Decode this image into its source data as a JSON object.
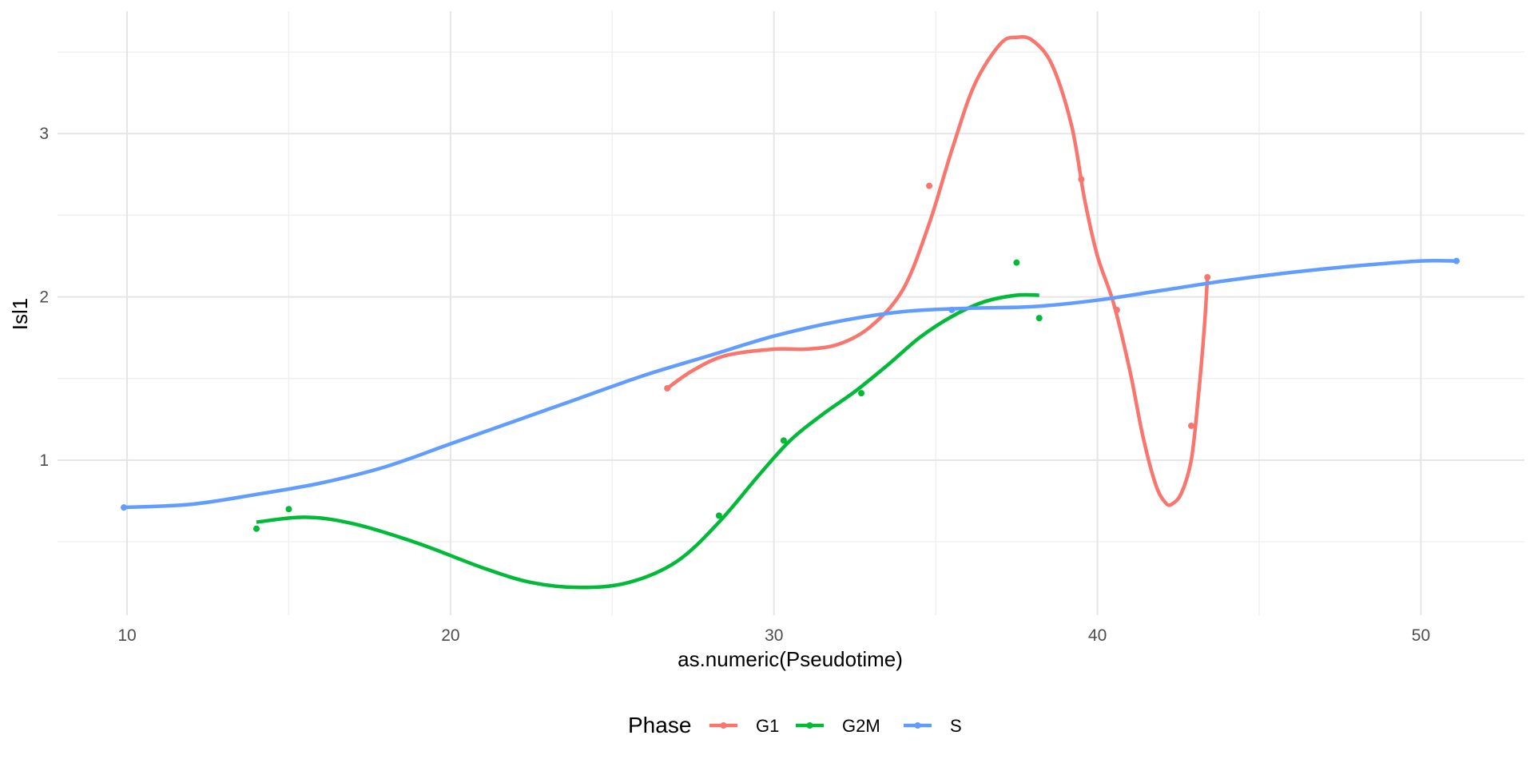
{
  "chart_data": {
    "type": "line",
    "title": "",
    "xlabel": "as.numeric(Pseudotime)",
    "ylabel": "Isl1",
    "xlim": [
      7.85,
      53.2
    ],
    "ylim": [
      0.05,
      3.75
    ],
    "x_ticks": [
      10,
      20,
      30,
      40,
      50
    ],
    "x_tick_labels": [
      "10",
      "20",
      "30",
      "40",
      "50"
    ],
    "y_ticks": [
      1,
      2,
      3
    ],
    "y_tick_labels": [
      "1",
      "2",
      "3"
    ],
    "grid": true,
    "legend": {
      "title": "Phase",
      "position": "bottom"
    },
    "series": [
      {
        "name": "G1",
        "color": "#F8766D",
        "points": [
          [
            26.7,
            1.44
          ],
          [
            34.8,
            2.68
          ],
          [
            39.5,
            2.72
          ],
          [
            40.6,
            1.92
          ],
          [
            42.9,
            1.21
          ],
          [
            43.4,
            2.12
          ]
        ],
        "smooth": [
          [
            26.7,
            1.44
          ],
          [
            27.5,
            1.55
          ],
          [
            28.5,
            1.64
          ],
          [
            30.0,
            1.68
          ],
          [
            31.0,
            1.68
          ],
          [
            32.0,
            1.71
          ],
          [
            33.0,
            1.82
          ],
          [
            34.0,
            2.05
          ],
          [
            34.8,
            2.45
          ],
          [
            35.5,
            2.9
          ],
          [
            36.2,
            3.3
          ],
          [
            37.0,
            3.55
          ],
          [
            37.5,
            3.59
          ],
          [
            38.0,
            3.57
          ],
          [
            38.6,
            3.42
          ],
          [
            39.2,
            3.05
          ],
          [
            39.6,
            2.6
          ],
          [
            40.0,
            2.25
          ],
          [
            40.5,
            1.96
          ],
          [
            41.0,
            1.55
          ],
          [
            41.4,
            1.15
          ],
          [
            41.8,
            0.85
          ],
          [
            42.1,
            0.74
          ],
          [
            42.3,
            0.73
          ],
          [
            42.6,
            0.8
          ],
          [
            42.9,
            1.0
          ],
          [
            43.1,
            1.35
          ],
          [
            43.3,
            1.8
          ],
          [
            43.4,
            2.12
          ]
        ]
      },
      {
        "name": "G2M",
        "color": "#00BA38",
        "points": [
          [
            14.0,
            0.58
          ],
          [
            15.0,
            0.7
          ],
          [
            28.3,
            0.66
          ],
          [
            30.3,
            1.12
          ],
          [
            32.7,
            1.41
          ],
          [
            37.5,
            2.21
          ],
          [
            38.2,
            1.87
          ]
        ],
        "smooth": [
          [
            14.0,
            0.62
          ],
          [
            15.5,
            0.65
          ],
          [
            17.0,
            0.61
          ],
          [
            19.0,
            0.49
          ],
          [
            21.0,
            0.34
          ],
          [
            22.5,
            0.25
          ],
          [
            24.0,
            0.22
          ],
          [
            25.5,
            0.25
          ],
          [
            27.0,
            0.38
          ],
          [
            28.3,
            0.62
          ],
          [
            29.5,
            0.9
          ],
          [
            30.5,
            1.12
          ],
          [
            31.5,
            1.28
          ],
          [
            32.5,
            1.42
          ],
          [
            33.5,
            1.58
          ],
          [
            34.5,
            1.75
          ],
          [
            35.5,
            1.88
          ],
          [
            36.5,
            1.97
          ],
          [
            37.5,
            2.01
          ],
          [
            38.2,
            2.01
          ]
        ]
      },
      {
        "name": "S",
        "color": "#619CFF",
        "points": [
          [
            9.9,
            0.71
          ],
          [
            35.5,
            1.92
          ],
          [
            51.1,
            2.22
          ]
        ],
        "smooth": [
          [
            9.9,
            0.71
          ],
          [
            12.0,
            0.73
          ],
          [
            14.0,
            0.79
          ],
          [
            16.0,
            0.86
          ],
          [
            18.0,
            0.96
          ],
          [
            20.0,
            1.1
          ],
          [
            22.0,
            1.24
          ],
          [
            24.0,
            1.38
          ],
          [
            26.0,
            1.52
          ],
          [
            28.0,
            1.64
          ],
          [
            30.0,
            1.76
          ],
          [
            32.0,
            1.85
          ],
          [
            34.0,
            1.91
          ],
          [
            36.0,
            1.93
          ],
          [
            38.0,
            1.94
          ],
          [
            40.0,
            1.98
          ],
          [
            42.0,
            2.04
          ],
          [
            44.0,
            2.1
          ],
          [
            46.0,
            2.15
          ],
          [
            48.0,
            2.19
          ],
          [
            50.0,
            2.22
          ],
          [
            51.1,
            2.22
          ]
        ]
      }
    ]
  }
}
